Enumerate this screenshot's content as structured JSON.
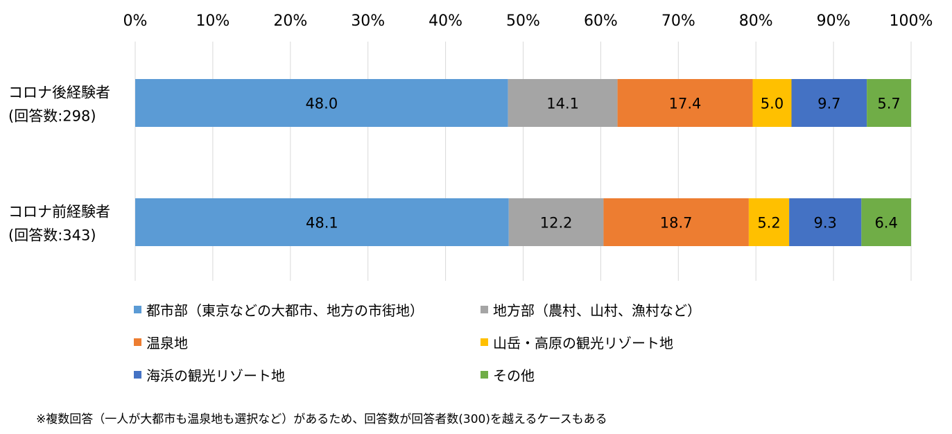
{
  "chart_data": {
    "type": "bar",
    "orientation": "horizontal",
    "stacked": "percent",
    "x_ticks": [
      "0%",
      "10%",
      "20%",
      "30%",
      "40%",
      "50%",
      "60%",
      "70%",
      "80%",
      "90%",
      "100%"
    ],
    "xlim": [
      0,
      100
    ],
    "grid": true,
    "legend_position": "bottom",
    "categories": [
      {
        "line1": "コロナ後経験者",
        "line2": "(回答数:298)"
      },
      {
        "line1": "コロナ前経験者",
        "line2": "(回答数:343)"
      }
    ],
    "series": [
      {
        "name": "都市部（東京などの大都市、地方の市街地）",
        "color": "#5B9BD5",
        "values": [
          48.0,
          48.1
        ],
        "labels": [
          "48.0",
          "48.1"
        ]
      },
      {
        "name": "地方部（農村、山村、漁村など）",
        "color": "#A5A5A5",
        "values": [
          14.1,
          12.2
        ],
        "labels": [
          "14.1",
          "12.2"
        ]
      },
      {
        "name": "温泉地",
        "color": "#ED7D31",
        "values": [
          17.4,
          18.7
        ],
        "labels": [
          "17.4",
          "18.7"
        ]
      },
      {
        "name": "山岳・高原の観光リゾート地",
        "color": "#FFC000",
        "values": [
          5.0,
          5.2
        ],
        "labels": [
          "5.0",
          "5.2"
        ]
      },
      {
        "name": "海浜の観光リゾート地",
        "color": "#4472C4",
        "values": [
          9.7,
          9.3
        ],
        "labels": [
          "9.7",
          "9.3"
        ]
      },
      {
        "name": "その他",
        "color": "#70AD47",
        "values": [
          5.7,
          6.4
        ],
        "labels": [
          "5.7",
          "6.4"
        ]
      }
    ]
  },
  "footnote": "※複数回答（一人が大都市も温泉地も選択など）があるため、回答数が回答者数(300)を越えるケースもある"
}
